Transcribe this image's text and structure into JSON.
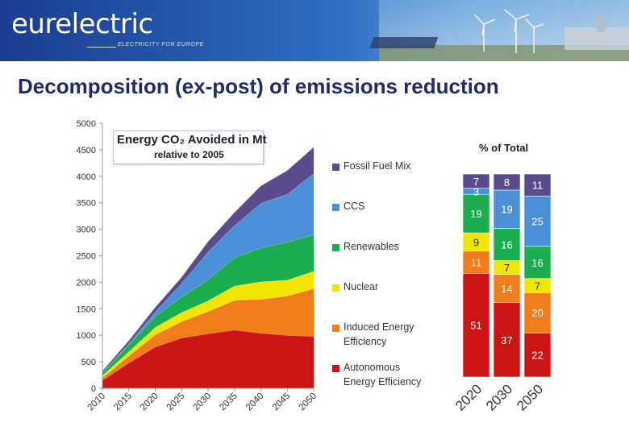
{
  "header": {
    "logo": "eurelectric",
    "tagline": "ELECTRICITY FOR EUROPE"
  },
  "slide": {
    "title": "Decomposition (ex-post) of emissions reduction"
  },
  "chart_data": [
    {
      "type": "area",
      "stacked": true,
      "title_line1": "Energy CO₂ Avoided in Mt",
      "title_line2": "relative to 2005",
      "x": [
        "2010",
        "2015",
        "2020",
        "2025",
        "2030",
        "2035",
        "2040",
        "2045",
        "2050"
      ],
      "ylim": [
        0,
        5000
      ],
      "yticks": [
        "0",
        "500",
        "1000",
        "1500",
        "2000",
        "2500",
        "3000",
        "3500",
        "4000",
        "4500",
        "5000"
      ],
      "grid": false,
      "legend_position": "right",
      "series": [
        {
          "name": "Autonomous Energy Efficiency",
          "color": "#cc1414",
          "values": [
            150,
            480,
            780,
            950,
            1030,
            1100,
            1040,
            1000,
            980
          ]
        },
        {
          "name": "Induced Energy Efficiency",
          "color": "#f07d1a",
          "values": [
            50,
            130,
            230,
            310,
            420,
            560,
            640,
            740,
            900
          ]
        },
        {
          "name": "Nuclear",
          "color": "#f2e600",
          "values": [
            40,
            80,
            140,
            170,
            200,
            270,
            330,
            300,
            330
          ]
        },
        {
          "name": "Renewables",
          "color": "#1aae4f",
          "values": [
            60,
            130,
            210,
            300,
            400,
            540,
            640,
            720,
            690
          ]
        },
        {
          "name": "CCS",
          "color": "#4b8fd8",
          "values": [
            0,
            20,
            80,
            250,
            520,
            600,
            840,
            900,
            1150
          ]
        },
        {
          "name": "Fossil Fuel Mix",
          "color": "#5a4c8c",
          "values": [
            30,
            60,
            90,
            120,
            200,
            250,
            330,
            450,
            500
          ]
        }
      ]
    },
    {
      "type": "bar",
      "stacked": true,
      "title": "% of Total",
      "categories": [
        "2020",
        "2030",
        "2050"
      ],
      "series": [
        {
          "name": "Autonomous Energy Efficiency",
          "color": "#cc1414",
          "values": [
            51,
            37,
            22
          ]
        },
        {
          "name": "Induced Energy Efficiency",
          "color": "#f07d1a",
          "values": [
            11,
            14,
            20
          ]
        },
        {
          "name": "Nuclear",
          "color": "#f2e600",
          "values": [
            9,
            7,
            7
          ]
        },
        {
          "name": "Renewables",
          "color": "#1aae4f",
          "values": [
            19,
            16,
            16
          ]
        },
        {
          "name": "CCS",
          "color": "#4b8fd8",
          "values": [
            3,
            19,
            25
          ]
        },
        {
          "name": "Fossil Fuel Mix",
          "color": "#5a4c8c",
          "values": [
            7,
            8,
            11
          ]
        }
      ]
    }
  ],
  "legend": [
    {
      "label": "Fossil Fuel Mix",
      "color": "#5a4c8c"
    },
    {
      "label": "CCS",
      "color": "#4b8fd8"
    },
    {
      "label": "Renewables",
      "color": "#1aae4f"
    },
    {
      "label": "Nuclear",
      "color": "#f2e600"
    },
    {
      "label": "Induced Energy\nEfficiency",
      "color": "#f07d1a"
    },
    {
      "label": "Autonomous\nEnergy Efficiency",
      "color": "#cc1414"
    }
  ]
}
